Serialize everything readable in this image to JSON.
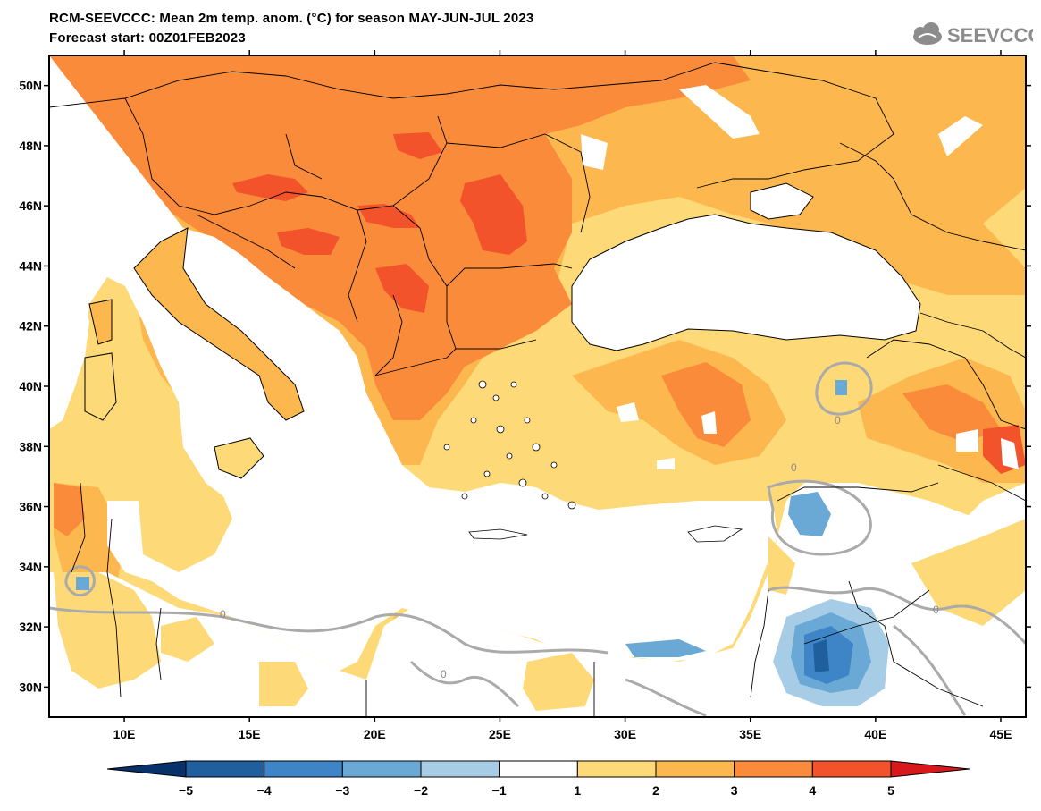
{
  "title_line1": "RCM-SEEVCCC: Mean 2m temp. anom. (°C) for season MAY-JUN-JUL 2023",
  "title_line2": "Forecast start: 00Z01FEB2023",
  "logo_text": "SEEVCCC",
  "map": {
    "lon_range": [
      7,
      46
    ],
    "lat_range": [
      29,
      51
    ],
    "lon_ticks": [
      "10E",
      "15E",
      "20E",
      "25E",
      "30E",
      "35E",
      "40E",
      "45E"
    ],
    "lat_ticks": [
      "30N",
      "32N",
      "34N",
      "36N",
      "38N",
      "40N",
      "42N",
      "44N",
      "46N",
      "48N",
      "50N"
    ],
    "contour_label": "0"
  },
  "colorbar": {
    "ticks": [
      "−5",
      "−4",
      "−3",
      "−2",
      "−1",
      "1",
      "2",
      "3",
      "4",
      "5"
    ],
    "colors": [
      "#08306b",
      "#1f5f9e",
      "#3d85c6",
      "#6aa8d6",
      "#a7cde6",
      "#ffffff",
      "#fdd977",
      "#fdb74f",
      "#f98b3b",
      "#f2532a",
      "#d7191c"
    ]
  },
  "legend_colors": {
    "anom_1_2": "#fdd977",
    "anom_2_3": "#fdb74f",
    "anom_3_4": "#f98b3b",
    "anom_4_5": "#f2532a",
    "neg_1_2": "#a7cde6",
    "neg_2_3": "#6aa8d6",
    "neg_3_4": "#3d85c6",
    "neg_4_5": "#1f5f9e",
    "zero_contour": "#aaaaaa"
  }
}
